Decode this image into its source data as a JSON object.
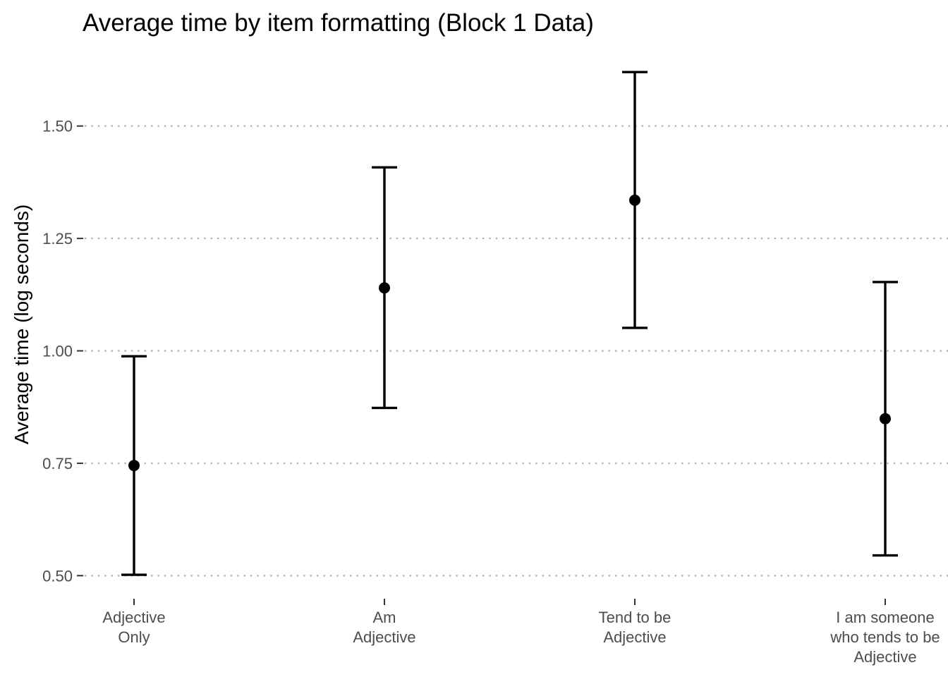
{
  "chart_data": {
    "type": "errorbar",
    "title": "Average time by item formatting (Block 1 Data)",
    "xlabel": "",
    "ylabel": "Average time (log seconds)",
    "ylim": [
      0.45,
      1.66
    ],
    "yticks": [
      0.5,
      0.75,
      1.0,
      1.25,
      1.5
    ],
    "ytick_labels": [
      "0.50",
      "0.75",
      "1.00",
      "1.25",
      "1.50"
    ],
    "grid": "horizontal dotted",
    "categories": [
      [
        "Adjective",
        "Only"
      ],
      [
        "Am",
        "Adjective"
      ],
      [
        "Tend to be",
        "Adjective"
      ],
      [
        "I am someone",
        "who tends to be",
        "Adjective"
      ]
    ],
    "values": [
      0.745,
      1.14,
      1.335,
      0.849
    ],
    "lower": [
      0.502,
      0.873,
      1.051,
      0.545
    ],
    "upper": [
      0.988,
      1.408,
      1.62,
      1.153
    ],
    "colors": {
      "points": "#000000",
      "grid": "#b3b3b3",
      "ticks": "#4d4d4d"
    }
  }
}
